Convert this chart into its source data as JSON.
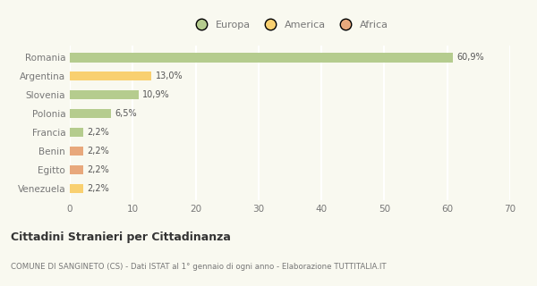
{
  "categories": [
    "Romania",
    "Argentina",
    "Slovenia",
    "Polonia",
    "Francia",
    "Benin",
    "Egitto",
    "Venezuela"
  ],
  "values": [
    60.9,
    13.0,
    10.9,
    6.5,
    2.2,
    2.2,
    2.2,
    2.2
  ],
  "labels": [
    "60,9%",
    "13,0%",
    "10,9%",
    "6,5%",
    "2,2%",
    "2,2%",
    "2,2%",
    "2,2%"
  ],
  "colors": [
    "#b5cc8e",
    "#f9d070",
    "#b5cc8e",
    "#b5cc8e",
    "#b5cc8e",
    "#e8a87c",
    "#e8a87c",
    "#f9d070"
  ],
  "legend": [
    {
      "label": "Europa",
      "color": "#b5cc8e"
    },
    {
      "label": "America",
      "color": "#f9d070"
    },
    {
      "label": "Africa",
      "color": "#e8a87c"
    }
  ],
  "xlim": [
    0,
    70
  ],
  "xticks": [
    0,
    10,
    20,
    30,
    40,
    50,
    60,
    70
  ],
  "title": "Cittadini Stranieri per Cittadinanza",
  "subtitle": "COMUNE DI SANGINETO (CS) - Dati ISTAT al 1° gennaio di ogni anno - Elaborazione TUTTITALIA.IT",
  "bg_color": "#f9f9f0",
  "grid_color": "#ffffff",
  "text_color": "#777777",
  "title_color": "#333333",
  "bar_label_color": "#555555"
}
